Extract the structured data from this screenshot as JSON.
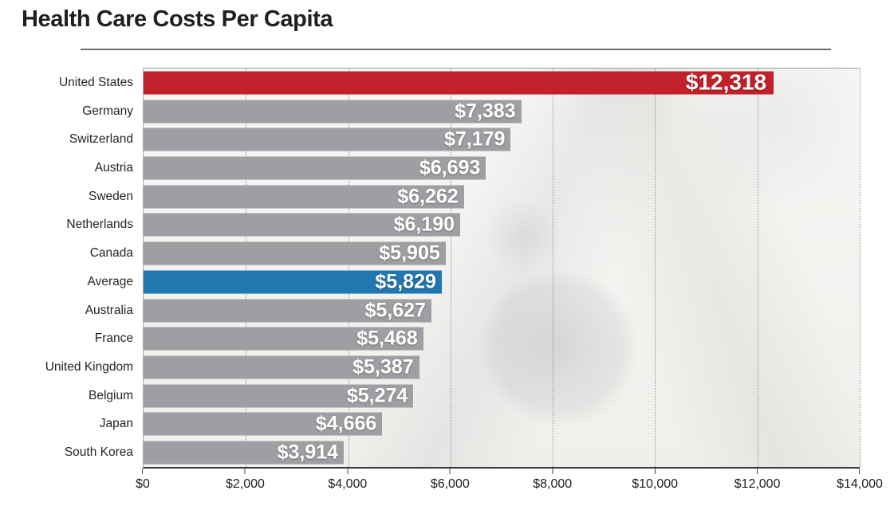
{
  "title": "Health Care Costs Per Capita",
  "chart_data": {
    "type": "bar",
    "orientation": "horizontal",
    "title": "Health Care Costs Per Capita",
    "xlabel": "",
    "ylabel": "",
    "xlim": [
      0,
      14000
    ],
    "grid": "vertical-dotted",
    "legend": "none",
    "categories": [
      "United States",
      "Germany",
      "Switzerland",
      "Austria",
      "Sweden",
      "Netherlands",
      "Canada",
      "Average",
      "Australia",
      "France",
      "United Kingdom",
      "Belgium",
      "Japan",
      "South Korea"
    ],
    "values": [
      12318,
      7383,
      7179,
      6693,
      6262,
      6190,
      5905,
      5829,
      5627,
      5468,
      5387,
      5274,
      4666,
      3914
    ],
    "value_labels": [
      "$12,318",
      "$7,383",
      "$7,179",
      "$6,693",
      "$6,262",
      "$6,190",
      "$5,905",
      "$5,829",
      "$5,627",
      "$5,468",
      "$5,387",
      "$5,274",
      "$4,666",
      "$3,914"
    ],
    "x_ticks": [
      "$0",
      "$2,000",
      "$4,000",
      "$6,000",
      "$8,000",
      "$10,000",
      "$12,000",
      "$14,000"
    ],
    "x_tick_values": [
      0,
      2000,
      4000,
      6000,
      8000,
      10000,
      12000,
      14000
    ],
    "emphasized_category": "United States",
    "bar_colors": {
      "United States": "#c2202a",
      "Average": "#2177af",
      "default": "#9d9fa2"
    }
  }
}
